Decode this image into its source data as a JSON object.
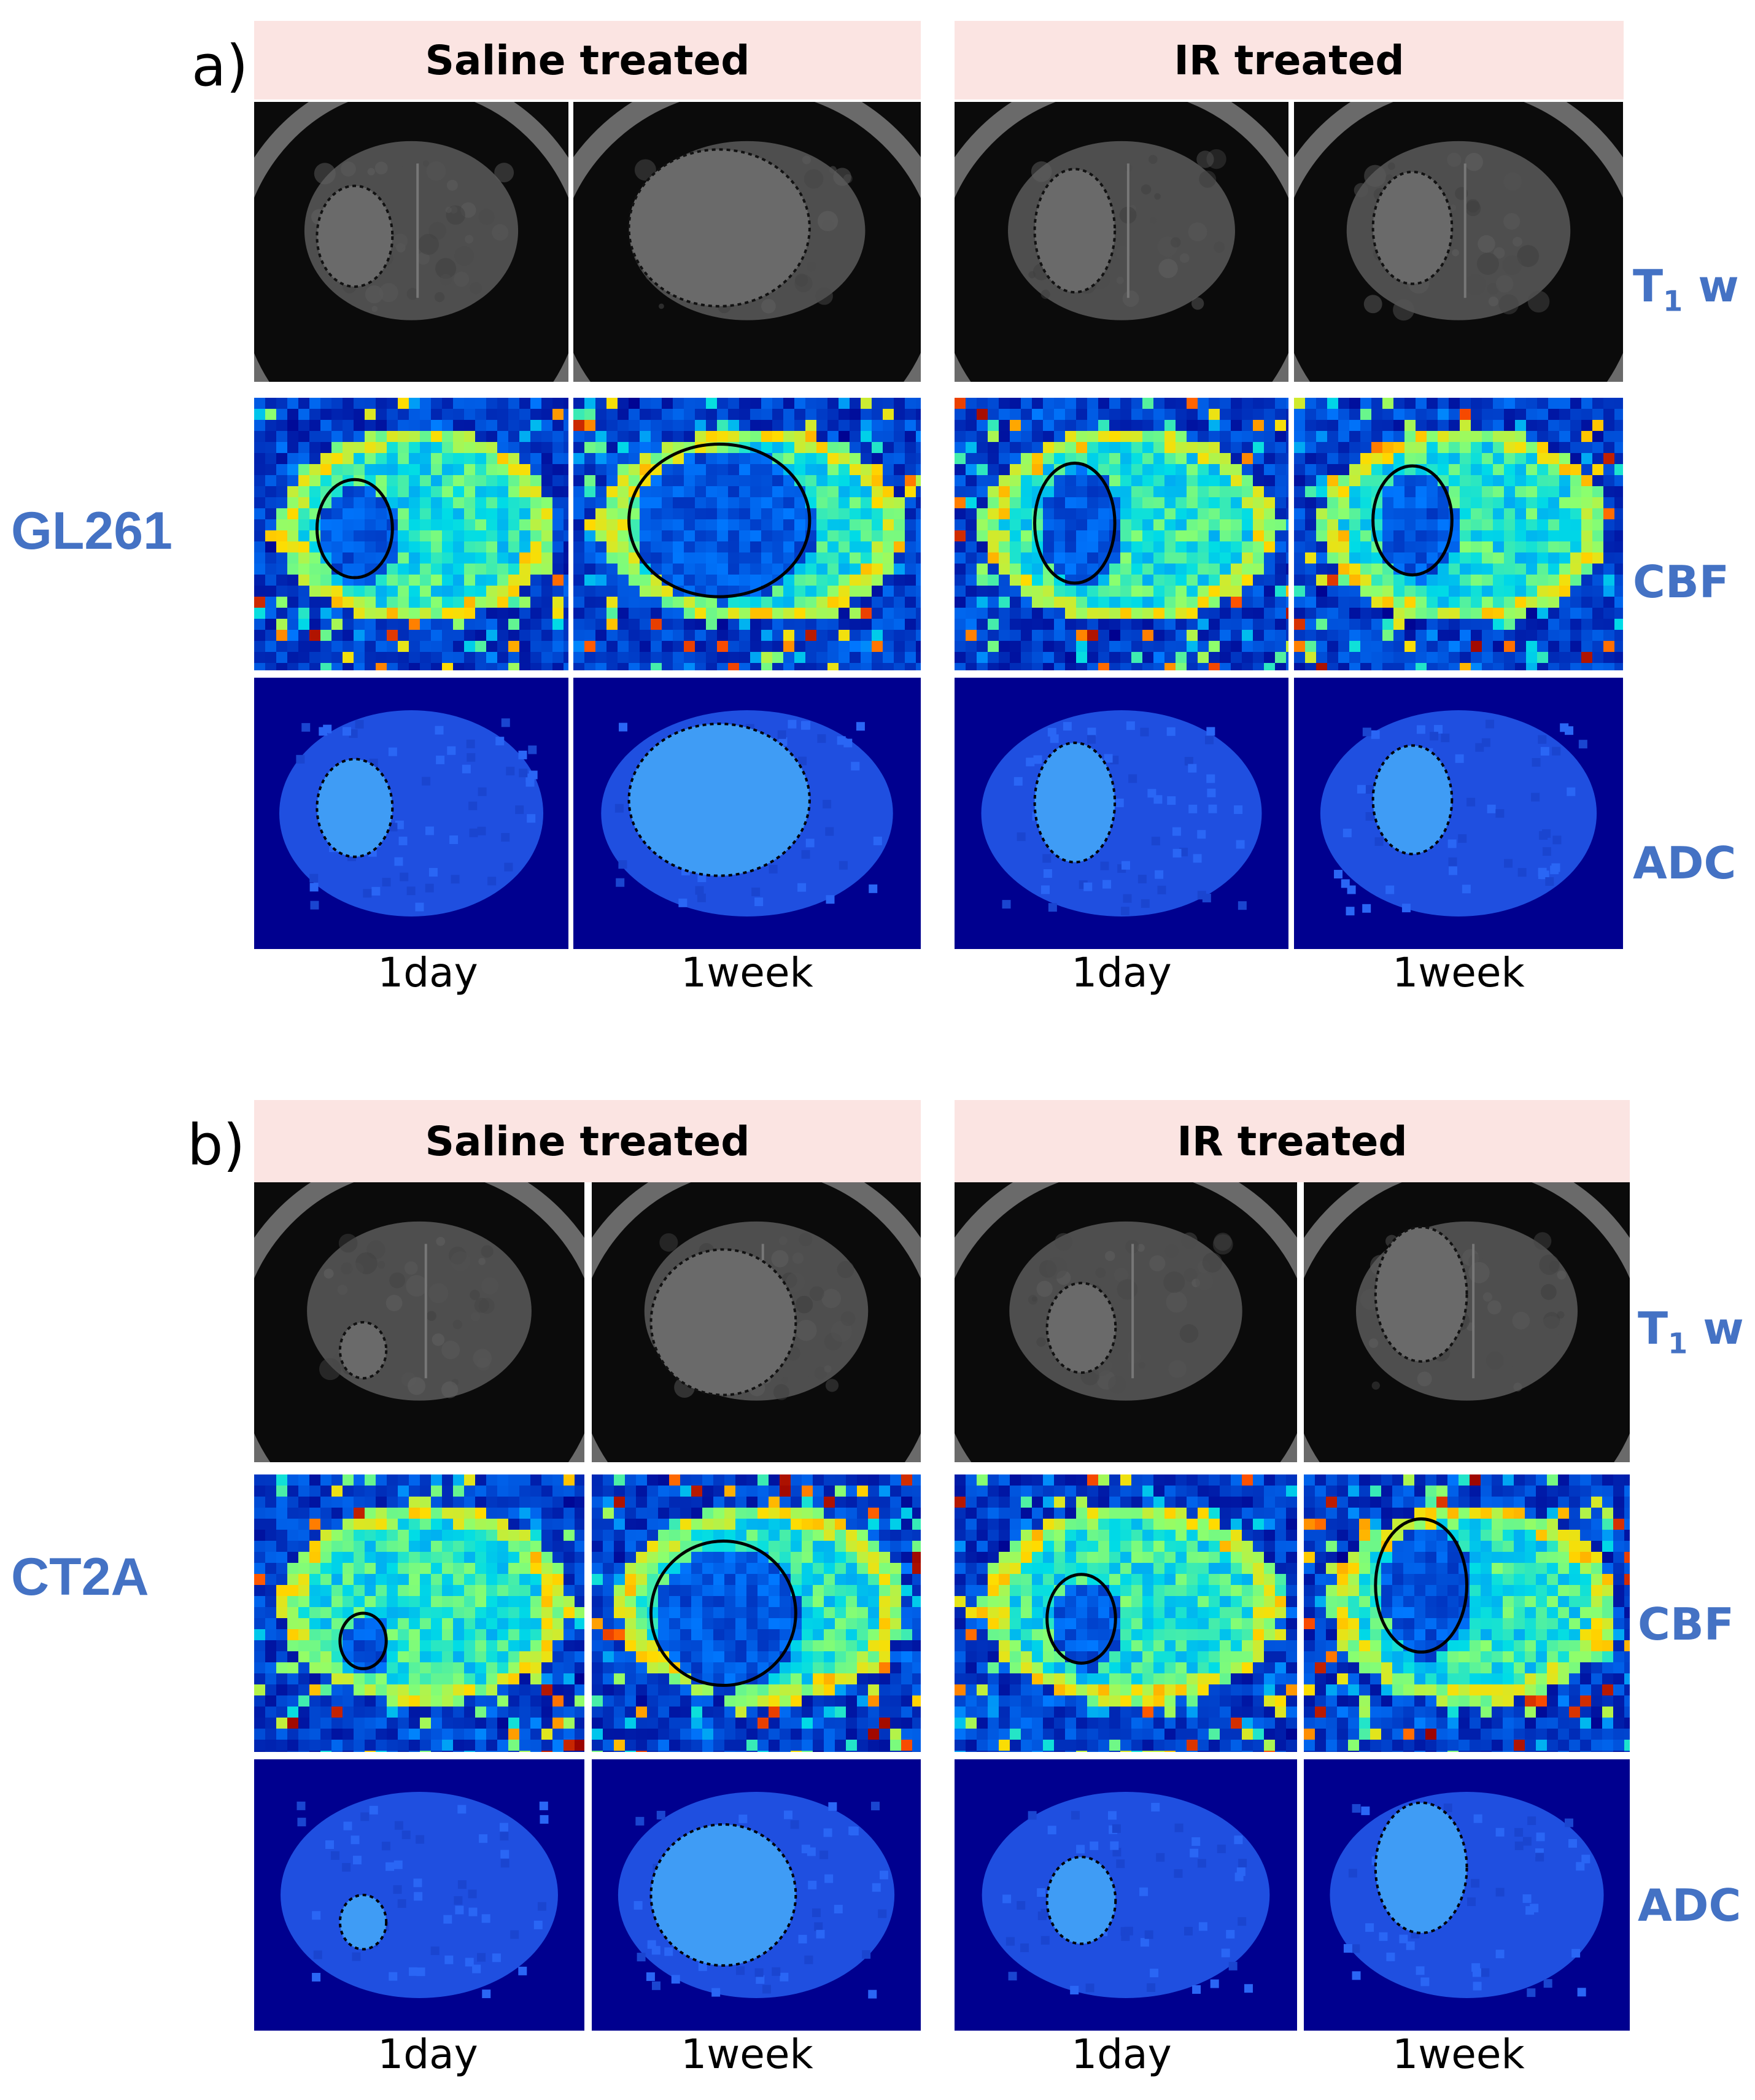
{
  "panels": [
    {
      "letter": "a)",
      "cell_line": "GL261",
      "groups": [
        "Saline treated",
        "IR treated"
      ],
      "rows": [
        "T1 w",
        "CBF",
        "ADC"
      ],
      "timepoints": [
        "1day",
        "1week",
        "1day",
        "1week"
      ]
    },
    {
      "letter": "b)",
      "cell_line": "CT2A",
      "groups": [
        "Saline treated",
        "IR treated"
      ],
      "rows": [
        "T1 w",
        "CBF",
        "ADC"
      ],
      "timepoints": [
        "1day",
        "1week",
        "1day",
        "1week"
      ]
    }
  ],
  "colors": {
    "header_bg": "#fbe4e2",
    "label_blue": "#4472c4",
    "colormap_bg": "#00008f"
  }
}
